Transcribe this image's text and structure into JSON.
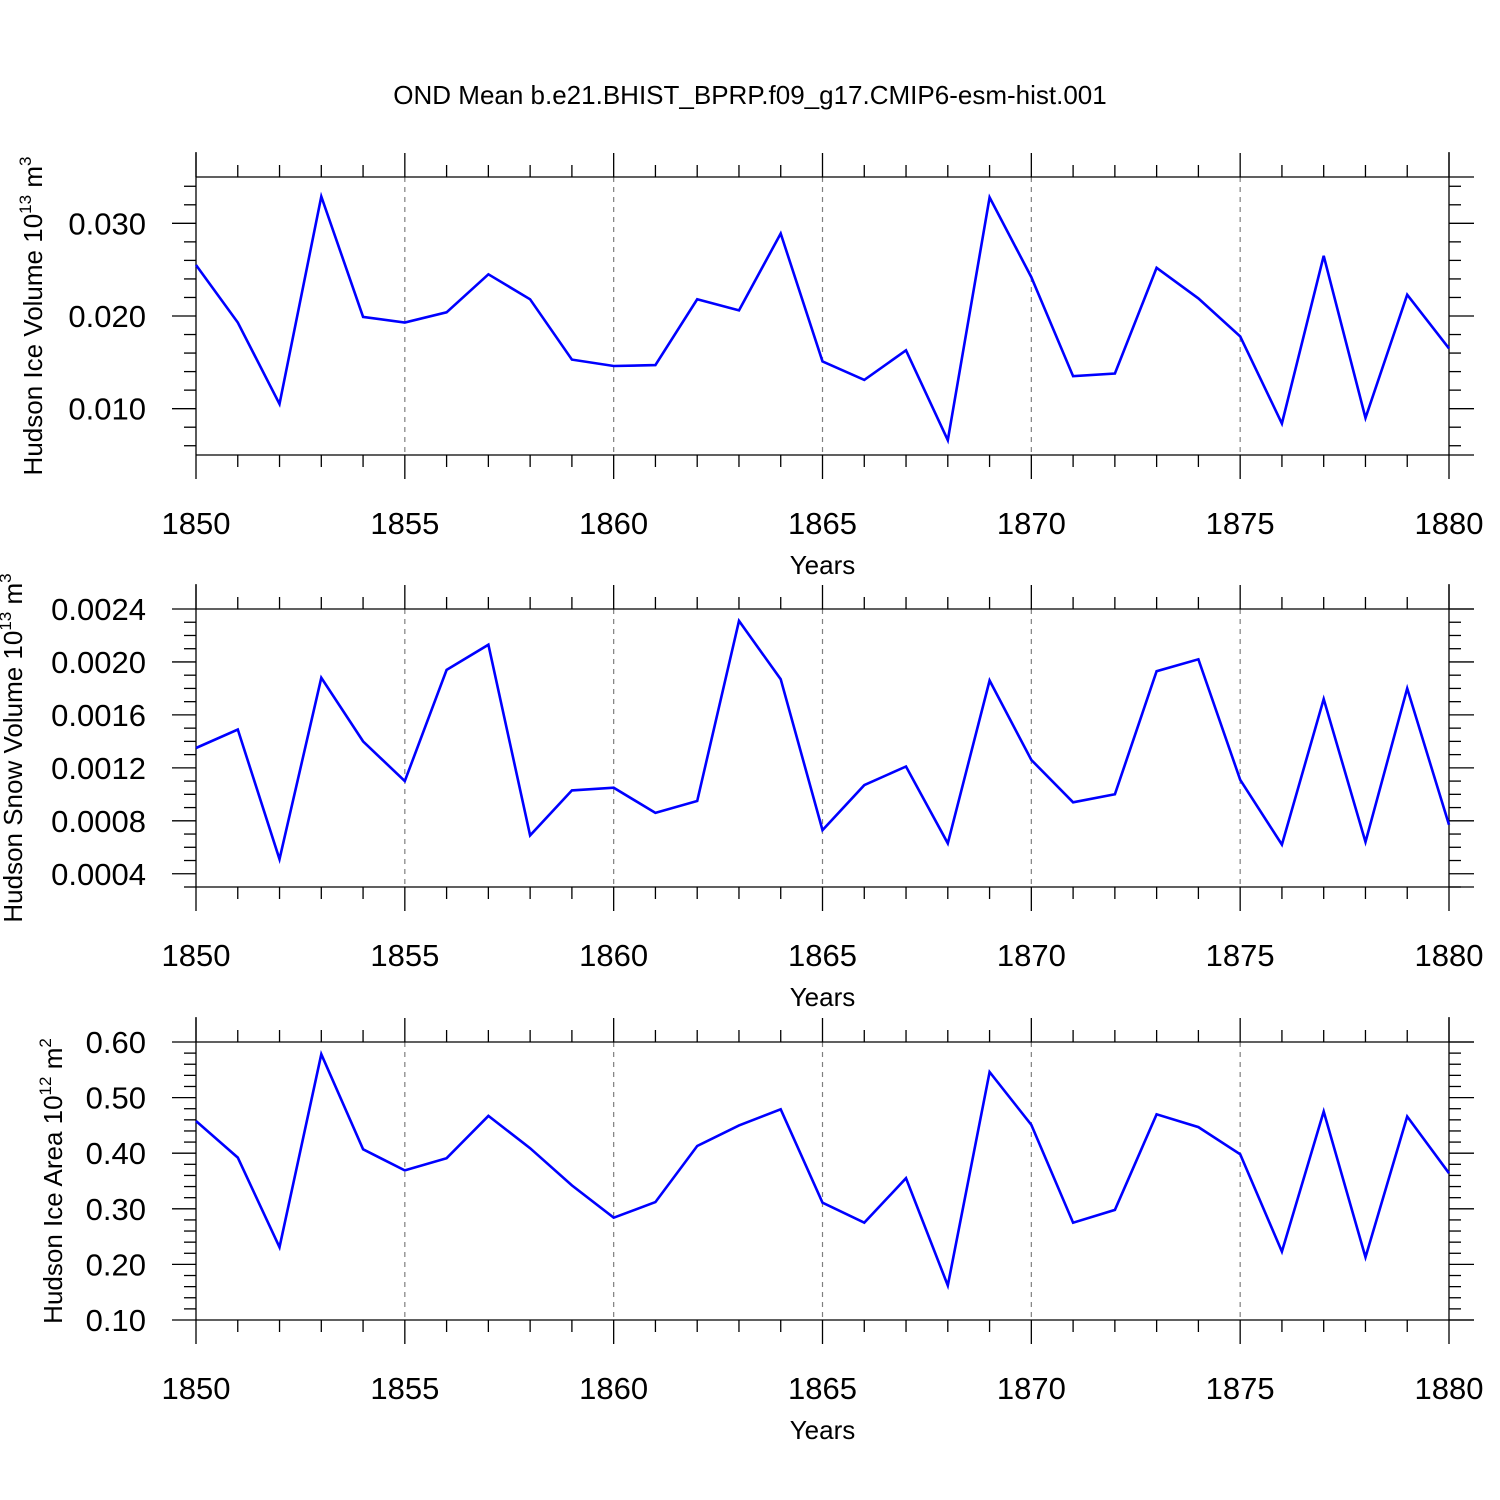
{
  "title": "OND Mean b.e21.BHIST_BPRP.f09_g17.CMIP6-esm-hist.001",
  "colors": {
    "line": "#0000ff",
    "axis": "#000000",
    "grid": "#7f7f7f"
  },
  "chart_data": [
    {
      "type": "line",
      "ylabel": "Hudson Ice Volume 10",
      "ylabel_exp": "13",
      "ylabel_unit": " m",
      "ylabel_unit_exp": "3",
      "xlabel": "Years",
      "xlim": [
        1850,
        1880
      ],
      "ylim": [
        0.005,
        0.035
      ],
      "ytick_step": 0.002,
      "yticks": [
        0.01,
        0.02,
        0.03
      ],
      "ytick_labels": [
        "0.010",
        "0.020",
        "0.030"
      ],
      "xticks": [
        1850,
        1855,
        1860,
        1865,
        1870,
        1875,
        1880
      ],
      "xtick_labels": [
        "1850",
        "1855",
        "1860",
        "1865",
        "1870",
        "1875",
        "1880"
      ],
      "grid": "vertical dashed at major x ticks",
      "x": [
        1850,
        1851,
        1852,
        1853,
        1854,
        1855,
        1856,
        1857,
        1858,
        1859,
        1860,
        1861,
        1862,
        1863,
        1864,
        1865,
        1866,
        1867,
        1868,
        1869,
        1870,
        1871,
        1872,
        1873,
        1874,
        1875,
        1876,
        1877,
        1878,
        1879,
        1880
      ],
      "values": [
        0.0255,
        0.0193,
        0.0105,
        0.0329,
        0.0199,
        0.0193,
        0.0204,
        0.0245,
        0.0218,
        0.0153,
        0.0146,
        0.0147,
        0.0218,
        0.0206,
        0.0289,
        0.0151,
        0.0131,
        0.0163,
        0.0066,
        0.0328,
        0.0242,
        0.0135,
        0.0138,
        0.0252,
        0.0219,
        0.0178,
        0.0084,
        0.0265,
        0.009,
        0.0223,
        0.0165
      ]
    },
    {
      "type": "line",
      "ylabel": "Hudson Snow Volume 10",
      "ylabel_exp": "13",
      "ylabel_unit": " m",
      "ylabel_unit_exp": "3",
      "xlabel": "Years",
      "xlim": [
        1850,
        1880
      ],
      "ylim": [
        0.0003,
        0.0024
      ],
      "ytick_step": 0.0001,
      "yticks": [
        0.0004,
        0.0008,
        0.0012,
        0.0016,
        0.002,
        0.0024
      ],
      "ytick_labels": [
        "0.0004",
        "0.0008",
        "0.0012",
        "0.0016",
        "0.0020",
        "0.0024"
      ],
      "xticks": [
        1850,
        1855,
        1860,
        1865,
        1870,
        1875,
        1880
      ],
      "xtick_labels": [
        "1850",
        "1855",
        "1860",
        "1865",
        "1870",
        "1875",
        "1880"
      ],
      "grid": "vertical dashed at major x ticks",
      "x": [
        1850,
        1851,
        1852,
        1853,
        1854,
        1855,
        1856,
        1857,
        1858,
        1859,
        1860,
        1861,
        1862,
        1863,
        1864,
        1865,
        1866,
        1867,
        1868,
        1869,
        1870,
        1871,
        1872,
        1873,
        1874,
        1875,
        1876,
        1877,
        1878,
        1879,
        1880
      ],
      "values": [
        0.00135,
        0.00149,
        0.00051,
        0.00188,
        0.0014,
        0.0011,
        0.00194,
        0.00213,
        0.00069,
        0.00103,
        0.00105,
        0.00086,
        0.00095,
        0.00231,
        0.00187,
        0.00073,
        0.00107,
        0.00121,
        0.00063,
        0.00186,
        0.00126,
        0.00094,
        0.001,
        0.00193,
        0.00202,
        0.00111,
        0.00062,
        0.00172,
        0.00064,
        0.0018,
        0.00077
      ]
    },
    {
      "type": "line",
      "ylabel": "Hudson Ice Area 10",
      "ylabel_exp": "12",
      "ylabel_unit": " m",
      "ylabel_unit_exp": "2",
      "xlabel": "Years",
      "xlim": [
        1850,
        1880
      ],
      "ylim": [
        0.1,
        0.6
      ],
      "ytick_step": 0.02,
      "yticks": [
        0.1,
        0.2,
        0.3,
        0.4,
        0.5,
        0.6
      ],
      "ytick_labels": [
        "0.10",
        "0.20",
        "0.30",
        "0.40",
        "0.50",
        "0.60"
      ],
      "xticks": [
        1850,
        1855,
        1860,
        1865,
        1870,
        1875,
        1880
      ],
      "xtick_labels": [
        "1850",
        "1855",
        "1860",
        "1865",
        "1870",
        "1875",
        "1880"
      ],
      "grid": "vertical dashed at major x ticks",
      "x": [
        1850,
        1851,
        1852,
        1853,
        1854,
        1855,
        1856,
        1857,
        1858,
        1859,
        1860,
        1861,
        1862,
        1863,
        1864,
        1865,
        1866,
        1867,
        1868,
        1869,
        1870,
        1871,
        1872,
        1873,
        1874,
        1875,
        1876,
        1877,
        1878,
        1879,
        1880
      ],
      "values": [
        0.458,
        0.392,
        0.231,
        0.578,
        0.407,
        0.369,
        0.391,
        0.467,
        0.409,
        0.342,
        0.284,
        0.312,
        0.413,
        0.45,
        0.479,
        0.311,
        0.275,
        0.355,
        0.162,
        0.546,
        0.451,
        0.275,
        0.298,
        0.47,
        0.447,
        0.398,
        0.223,
        0.475,
        0.213,
        0.466,
        0.364
      ]
    }
  ]
}
